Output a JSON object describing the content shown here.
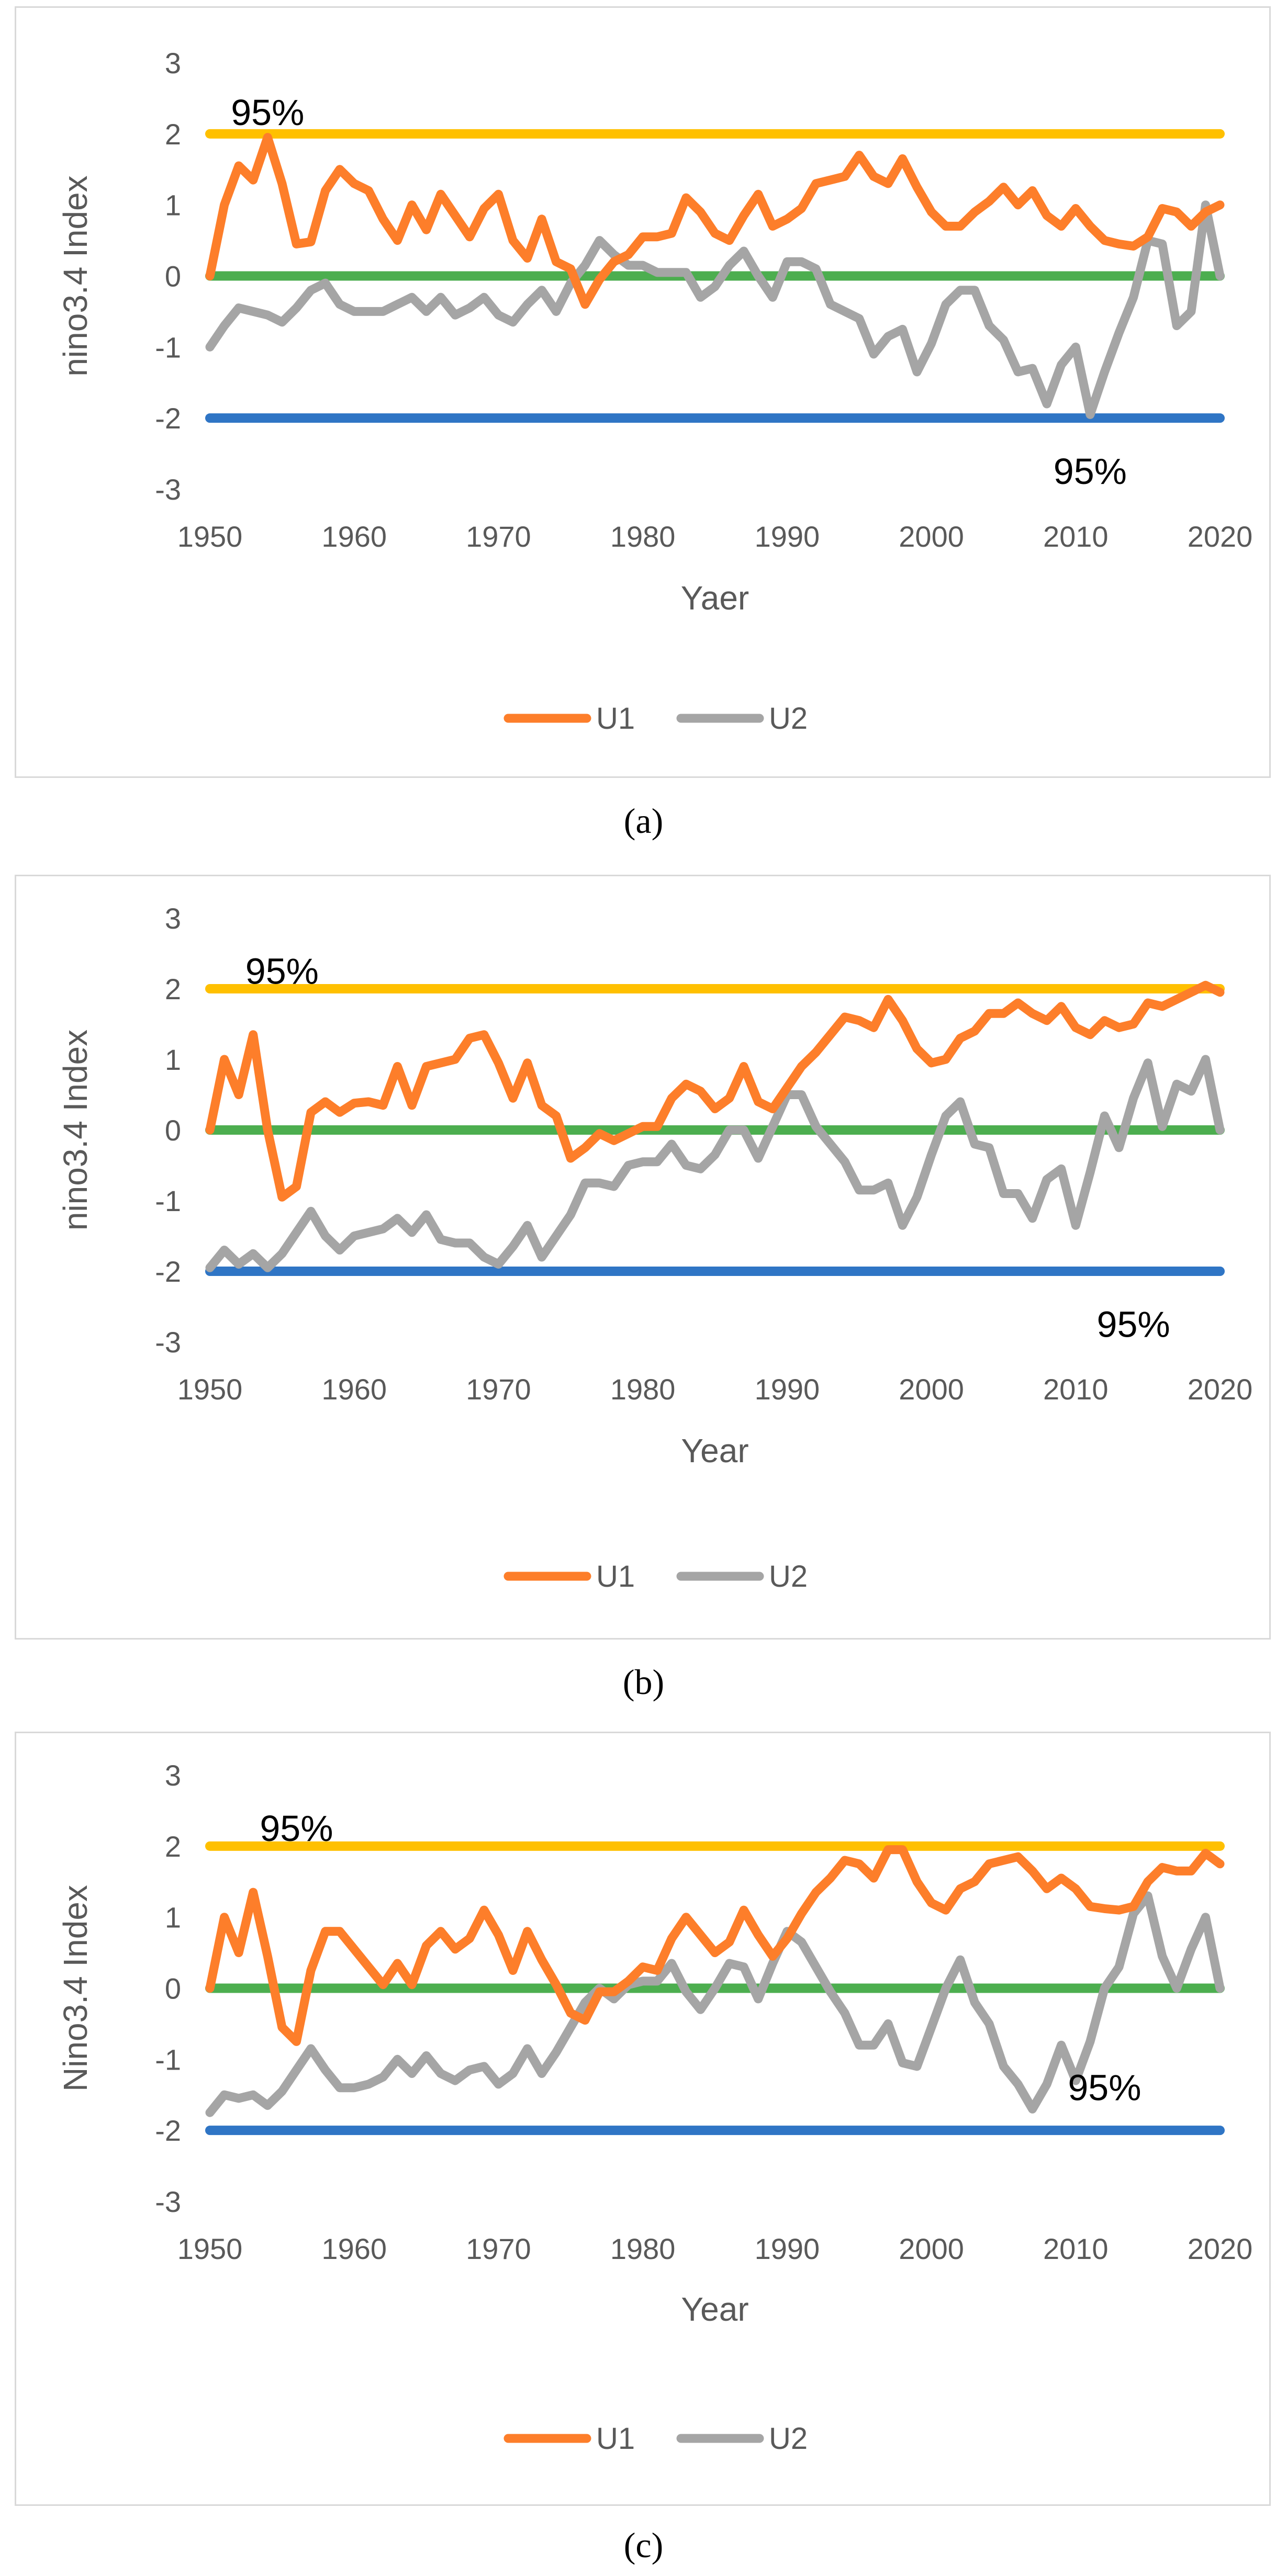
{
  "chart_data": [
    {
      "type": "line",
      "panel_label": "a",
      "ylabel": "nino3.4 Index",
      "xlabel": "Yaer",
      "xlim": [
        1950,
        2020
      ],
      "ylim": [
        -3,
        3
      ],
      "xticks": [
        1950,
        1960,
        1970,
        1980,
        1990,
        2000,
        2010,
        2020
      ],
      "yticks": [
        3,
        2,
        1,
        0,
        -1,
        -2,
        -3
      ],
      "reference_lines": [
        {
          "name": "upper-95",
          "y": 2,
          "color": "#ffc000"
        },
        {
          "name": "zero",
          "y": 0,
          "color": "#4cae4f"
        },
        {
          "name": "lower-95",
          "y": -2,
          "color": "#2f75c5"
        }
      ],
      "annotations": [
        {
          "text": "95%",
          "x": 1954,
          "y": 2.3
        },
        {
          "text": "95%",
          "x": 2011,
          "y": -2.75
        }
      ],
      "x": [
        1950,
        1951,
        1952,
        1953,
        1954,
        1955,
        1956,
        1957,
        1958,
        1959,
        1960,
        1961,
        1962,
        1963,
        1964,
        1965,
        1966,
        1967,
        1968,
        1969,
        1970,
        1971,
        1972,
        1973,
        1974,
        1975,
        1976,
        1977,
        1978,
        1979,
        1980,
        1981,
        1982,
        1983,
        1984,
        1985,
        1986,
        1987,
        1988,
        1989,
        1990,
        1991,
        1992,
        1993,
        1994,
        1995,
        1996,
        1997,
        1998,
        1999,
        2000,
        2001,
        2002,
        2003,
        2004,
        2005,
        2006,
        2007,
        2008,
        2009,
        2010,
        2011,
        2012,
        2013,
        2014,
        2015,
        2016,
        2017,
        2018,
        2019,
        2020
      ],
      "series": [
        {
          "name": "U1",
          "color": "#fd7e2a",
          "values": [
            0.0,
            1.0,
            1.55,
            1.35,
            1.95,
            1.3,
            0.45,
            0.48,
            1.2,
            1.5,
            1.3,
            1.2,
            0.8,
            0.5,
            1.0,
            0.65,
            1.15,
            0.85,
            0.55,
            0.95,
            1.15,
            0.5,
            0.25,
            0.8,
            0.2,
            0.1,
            -0.4,
            -0.05,
            0.2,
            0.3,
            0.55,
            0.55,
            0.6,
            1.1,
            0.9,
            0.6,
            0.5,
            0.85,
            1.15,
            0.7,
            0.8,
            0.95,
            1.3,
            1.35,
            1.4,
            1.7,
            1.4,
            1.3,
            1.65,
            1.25,
            0.9,
            0.7,
            0.7,
            0.9,
            1.05,
            1.25,
            1.0,
            1.2,
            0.85,
            0.7,
            0.95,
            0.7,
            0.5,
            0.45,
            0.42,
            0.55,
            0.95,
            0.9,
            0.7,
            0.9,
            1.0
          ]
        },
        {
          "name": "U2",
          "color": "#a5a5a5",
          "values": [
            -1.0,
            -0.7,
            -0.45,
            -0.5,
            -0.55,
            -0.65,
            -0.45,
            -0.2,
            -0.1,
            -0.4,
            -0.5,
            -0.5,
            -0.5,
            -0.4,
            -0.3,
            -0.5,
            -0.3,
            -0.55,
            -0.45,
            -0.3,
            -0.55,
            -0.65,
            -0.4,
            -0.2,
            -0.5,
            -0.1,
            0.15,
            0.5,
            0.3,
            0.15,
            0.15,
            0.05,
            0.05,
            0.05,
            -0.3,
            -0.15,
            0.15,
            0.35,
            0.0,
            -0.3,
            0.2,
            0.2,
            0.1,
            -0.4,
            -0.5,
            -0.6,
            -1.1,
            -0.85,
            -0.75,
            -1.35,
            -0.95,
            -0.4,
            -0.2,
            -0.2,
            -0.7,
            -0.9,
            -1.35,
            -1.3,
            -1.8,
            -1.25,
            -1.0,
            -1.95,
            -1.35,
            -0.8,
            -0.3,
            0.5,
            0.45,
            -0.7,
            -0.5,
            1.0,
            0.0
          ]
        }
      ]
    },
    {
      "type": "line",
      "panel_label": "b",
      "ylabel": "nino3.4 Index",
      "xlabel": "Year",
      "xlim": [
        1950,
        2020
      ],
      "ylim": [
        -3,
        3
      ],
      "xticks": [
        1950,
        1960,
        1970,
        1980,
        1990,
        2000,
        2010,
        2020
      ],
      "yticks": [
        3,
        2,
        1,
        0,
        -1,
        -2,
        -3
      ],
      "reference_lines": [
        {
          "name": "upper-95",
          "y": 2,
          "color": "#ffc000"
        },
        {
          "name": "zero",
          "y": 0,
          "color": "#4cae4f"
        },
        {
          "name": "lower-95",
          "y": -2,
          "color": "#2f75c5"
        }
      ],
      "annotations": [
        {
          "text": "95%",
          "x": 1955,
          "y": 2.25
        },
        {
          "text": "95%",
          "x": 2014,
          "y": -2.75
        }
      ],
      "x": [
        1950,
        1951,
        1952,
        1953,
        1954,
        1955,
        1956,
        1957,
        1958,
        1959,
        1960,
        1961,
        1962,
        1963,
        1964,
        1965,
        1966,
        1967,
        1968,
        1969,
        1970,
        1971,
        1972,
        1973,
        1974,
        1975,
        1976,
        1977,
        1978,
        1979,
        1980,
        1981,
        1982,
        1983,
        1984,
        1985,
        1986,
        1987,
        1988,
        1989,
        1990,
        1991,
        1992,
        1993,
        1994,
        1995,
        1996,
        1997,
        1998,
        1999,
        2000,
        2001,
        2002,
        2003,
        2004,
        2005,
        2006,
        2007,
        2008,
        2009,
        2010,
        2011,
        2012,
        2013,
        2014,
        2015,
        2016,
        2017,
        2018,
        2019,
        2020
      ],
      "series": [
        {
          "name": "U1",
          "color": "#fd7e2a",
          "values": [
            0.0,
            1.0,
            0.5,
            1.35,
            0.0,
            -0.95,
            -0.8,
            0.25,
            0.4,
            0.25,
            0.38,
            0.4,
            0.35,
            0.9,
            0.35,
            0.9,
            0.95,
            1.0,
            1.3,
            1.35,
            0.95,
            0.45,
            0.95,
            0.35,
            0.2,
            -0.4,
            -0.25,
            -0.05,
            -0.15,
            -0.05,
            0.05,
            0.05,
            0.45,
            0.65,
            0.55,
            0.3,
            0.45,
            0.9,
            0.4,
            0.3,
            0.6,
            0.9,
            1.1,
            1.35,
            1.6,
            1.55,
            1.45,
            1.85,
            1.55,
            1.15,
            0.95,
            1.0,
            1.3,
            1.4,
            1.65,
            1.65,
            1.8,
            1.65,
            1.55,
            1.75,
            1.45,
            1.35,
            1.55,
            1.45,
            1.5,
            1.8,
            1.75,
            1.85,
            1.95,
            2.05,
            1.95
          ]
        },
        {
          "name": "U2",
          "color": "#a5a5a5",
          "values": [
            -1.95,
            -1.7,
            -1.9,
            -1.75,
            -1.95,
            -1.75,
            -1.45,
            -1.15,
            -1.5,
            -1.7,
            -1.5,
            -1.45,
            -1.4,
            -1.25,
            -1.45,
            -1.2,
            -1.55,
            -1.6,
            -1.6,
            -1.8,
            -1.9,
            -1.65,
            -1.35,
            -1.8,
            -1.5,
            -1.2,
            -0.75,
            -0.75,
            -0.8,
            -0.5,
            -0.45,
            -0.45,
            -0.2,
            -0.5,
            -0.55,
            -0.35,
            0.0,
            0.0,
            -0.4,
            0.05,
            0.5,
            0.5,
            0.05,
            -0.2,
            -0.45,
            -0.85,
            -0.85,
            -0.75,
            -1.35,
            -0.95,
            -0.35,
            0.2,
            0.4,
            -0.2,
            -0.25,
            -0.9,
            -0.9,
            -1.25,
            -0.7,
            -0.55,
            -1.35,
            -0.6,
            0.2,
            -0.25,
            0.45,
            0.95,
            0.05,
            0.65,
            0.55,
            1.0,
            0.0
          ]
        }
      ]
    },
    {
      "type": "line",
      "panel_label": "c",
      "ylabel": "Nino3.4 Index",
      "xlabel": "Year",
      "xlim": [
        1950,
        2020
      ],
      "ylim": [
        -3,
        3
      ],
      "xticks": [
        1950,
        1960,
        1970,
        1980,
        1990,
        2000,
        2010,
        2020
      ],
      "yticks": [
        3,
        2,
        1,
        0,
        -1,
        -2,
        -3
      ],
      "reference_lines": [
        {
          "name": "upper-95",
          "y": 2,
          "color": "#ffc000"
        },
        {
          "name": "zero",
          "y": 0,
          "color": "#4cae4f"
        },
        {
          "name": "lower-95",
          "y": -2,
          "color": "#2f75c5"
        }
      ],
      "annotations": [
        {
          "text": "95%",
          "x": 1956,
          "y": 2.25
        },
        {
          "text": "95%",
          "x": 2012,
          "y": -1.4
        }
      ],
      "x": [
        1950,
        1951,
        1952,
        1953,
        1954,
        1955,
        1956,
        1957,
        1958,
        1959,
        1960,
        1961,
        1962,
        1963,
        1964,
        1965,
        1966,
        1967,
        1968,
        1969,
        1970,
        1971,
        1972,
        1973,
        1974,
        1975,
        1976,
        1977,
        1978,
        1979,
        1980,
        1981,
        1982,
        1983,
        1984,
        1985,
        1986,
        1987,
        1988,
        1989,
        1990,
        1991,
        1992,
        1993,
        1994,
        1995,
        1996,
        1997,
        1998,
        1999,
        2000,
        2001,
        2002,
        2003,
        2004,
        2005,
        2006,
        2007,
        2008,
        2009,
        2010,
        2011,
        2012,
        2013,
        2014,
        2015,
        2016,
        2017,
        2018,
        2019,
        2020
      ],
      "series": [
        {
          "name": "U1",
          "color": "#fd7e2a",
          "values": [
            0.0,
            1.0,
            0.5,
            1.35,
            0.45,
            -0.55,
            -0.75,
            0.25,
            0.8,
            0.8,
            0.55,
            0.3,
            0.05,
            0.35,
            0.05,
            0.6,
            0.8,
            0.55,
            0.7,
            1.1,
            0.75,
            0.25,
            0.8,
            0.4,
            0.05,
            -0.35,
            -0.45,
            -0.05,
            -0.05,
            0.1,
            0.3,
            0.25,
            0.7,
            1.0,
            0.75,
            0.5,
            0.65,
            1.1,
            0.75,
            0.45,
            0.7,
            1.05,
            1.35,
            1.55,
            1.8,
            1.75,
            1.55,
            1.95,
            1.95,
            1.5,
            1.2,
            1.1,
            1.4,
            1.5,
            1.75,
            1.8,
            1.85,
            1.65,
            1.4,
            1.55,
            1.4,
            1.15,
            1.12,
            1.1,
            1.15,
            1.5,
            1.7,
            1.65,
            1.65,
            1.9,
            1.75
          ]
        },
        {
          "name": "U2",
          "color": "#a5a5a5",
          "values": [
            -1.75,
            -1.5,
            -1.55,
            -1.5,
            -1.65,
            -1.45,
            -1.15,
            -0.85,
            -1.15,
            -1.4,
            -1.4,
            -1.35,
            -1.25,
            -1.0,
            -1.2,
            -0.95,
            -1.2,
            -1.3,
            -1.15,
            -1.1,
            -1.35,
            -1.2,
            -0.85,
            -1.2,
            -0.9,
            -0.55,
            -0.2,
            0.0,
            -0.15,
            0.05,
            0.1,
            0.1,
            0.35,
            -0.05,
            -0.3,
            0.0,
            0.35,
            0.3,
            -0.15,
            0.35,
            0.8,
            0.65,
            0.3,
            -0.05,
            -0.35,
            -0.8,
            -0.8,
            -0.5,
            -1.05,
            -1.1,
            -0.55,
            0.0,
            0.4,
            -0.2,
            -0.5,
            -1.1,
            -1.35,
            -1.7,
            -1.35,
            -0.8,
            -1.3,
            -0.75,
            0.0,
            0.3,
            1.05,
            1.3,
            0.45,
            0.0,
            0.55,
            1.0,
            0.0
          ]
        }
      ]
    }
  ],
  "captions": [
    "(a)",
    "(b)",
    "(c)"
  ]
}
